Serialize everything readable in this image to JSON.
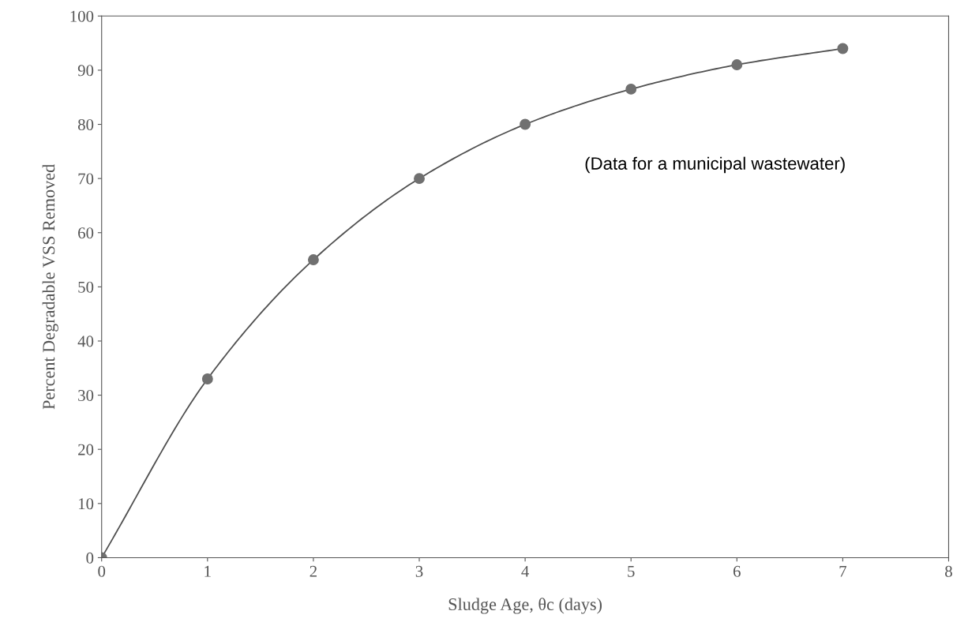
{
  "chart_data": {
    "type": "line",
    "xlabel": "Sludge Age, θc (days)",
    "ylabel": "Percent Degradable VSS Removed",
    "x": [
      0,
      1,
      2,
      3,
      4,
      5,
      6,
      7
    ],
    "series": [
      {
        "color": "#707070",
        "values": [
          0,
          33,
          55,
          70,
          80,
          86.5,
          91,
          94
        ]
      }
    ],
    "marker": "circle",
    "line_style": "solid",
    "xlim": [
      0,
      8
    ],
    "xticks": [
      0,
      1,
      2,
      3,
      4,
      5,
      6,
      7,
      8
    ],
    "ylim": [
      0,
      100
    ],
    "yticks": [
      0,
      10,
      20,
      30,
      40,
      50,
      60,
      70,
      80,
      90,
      100
    ],
    "grid": false,
    "legend": false,
    "annotations": [
      "(Data for a municipal wastewater)"
    ]
  }
}
